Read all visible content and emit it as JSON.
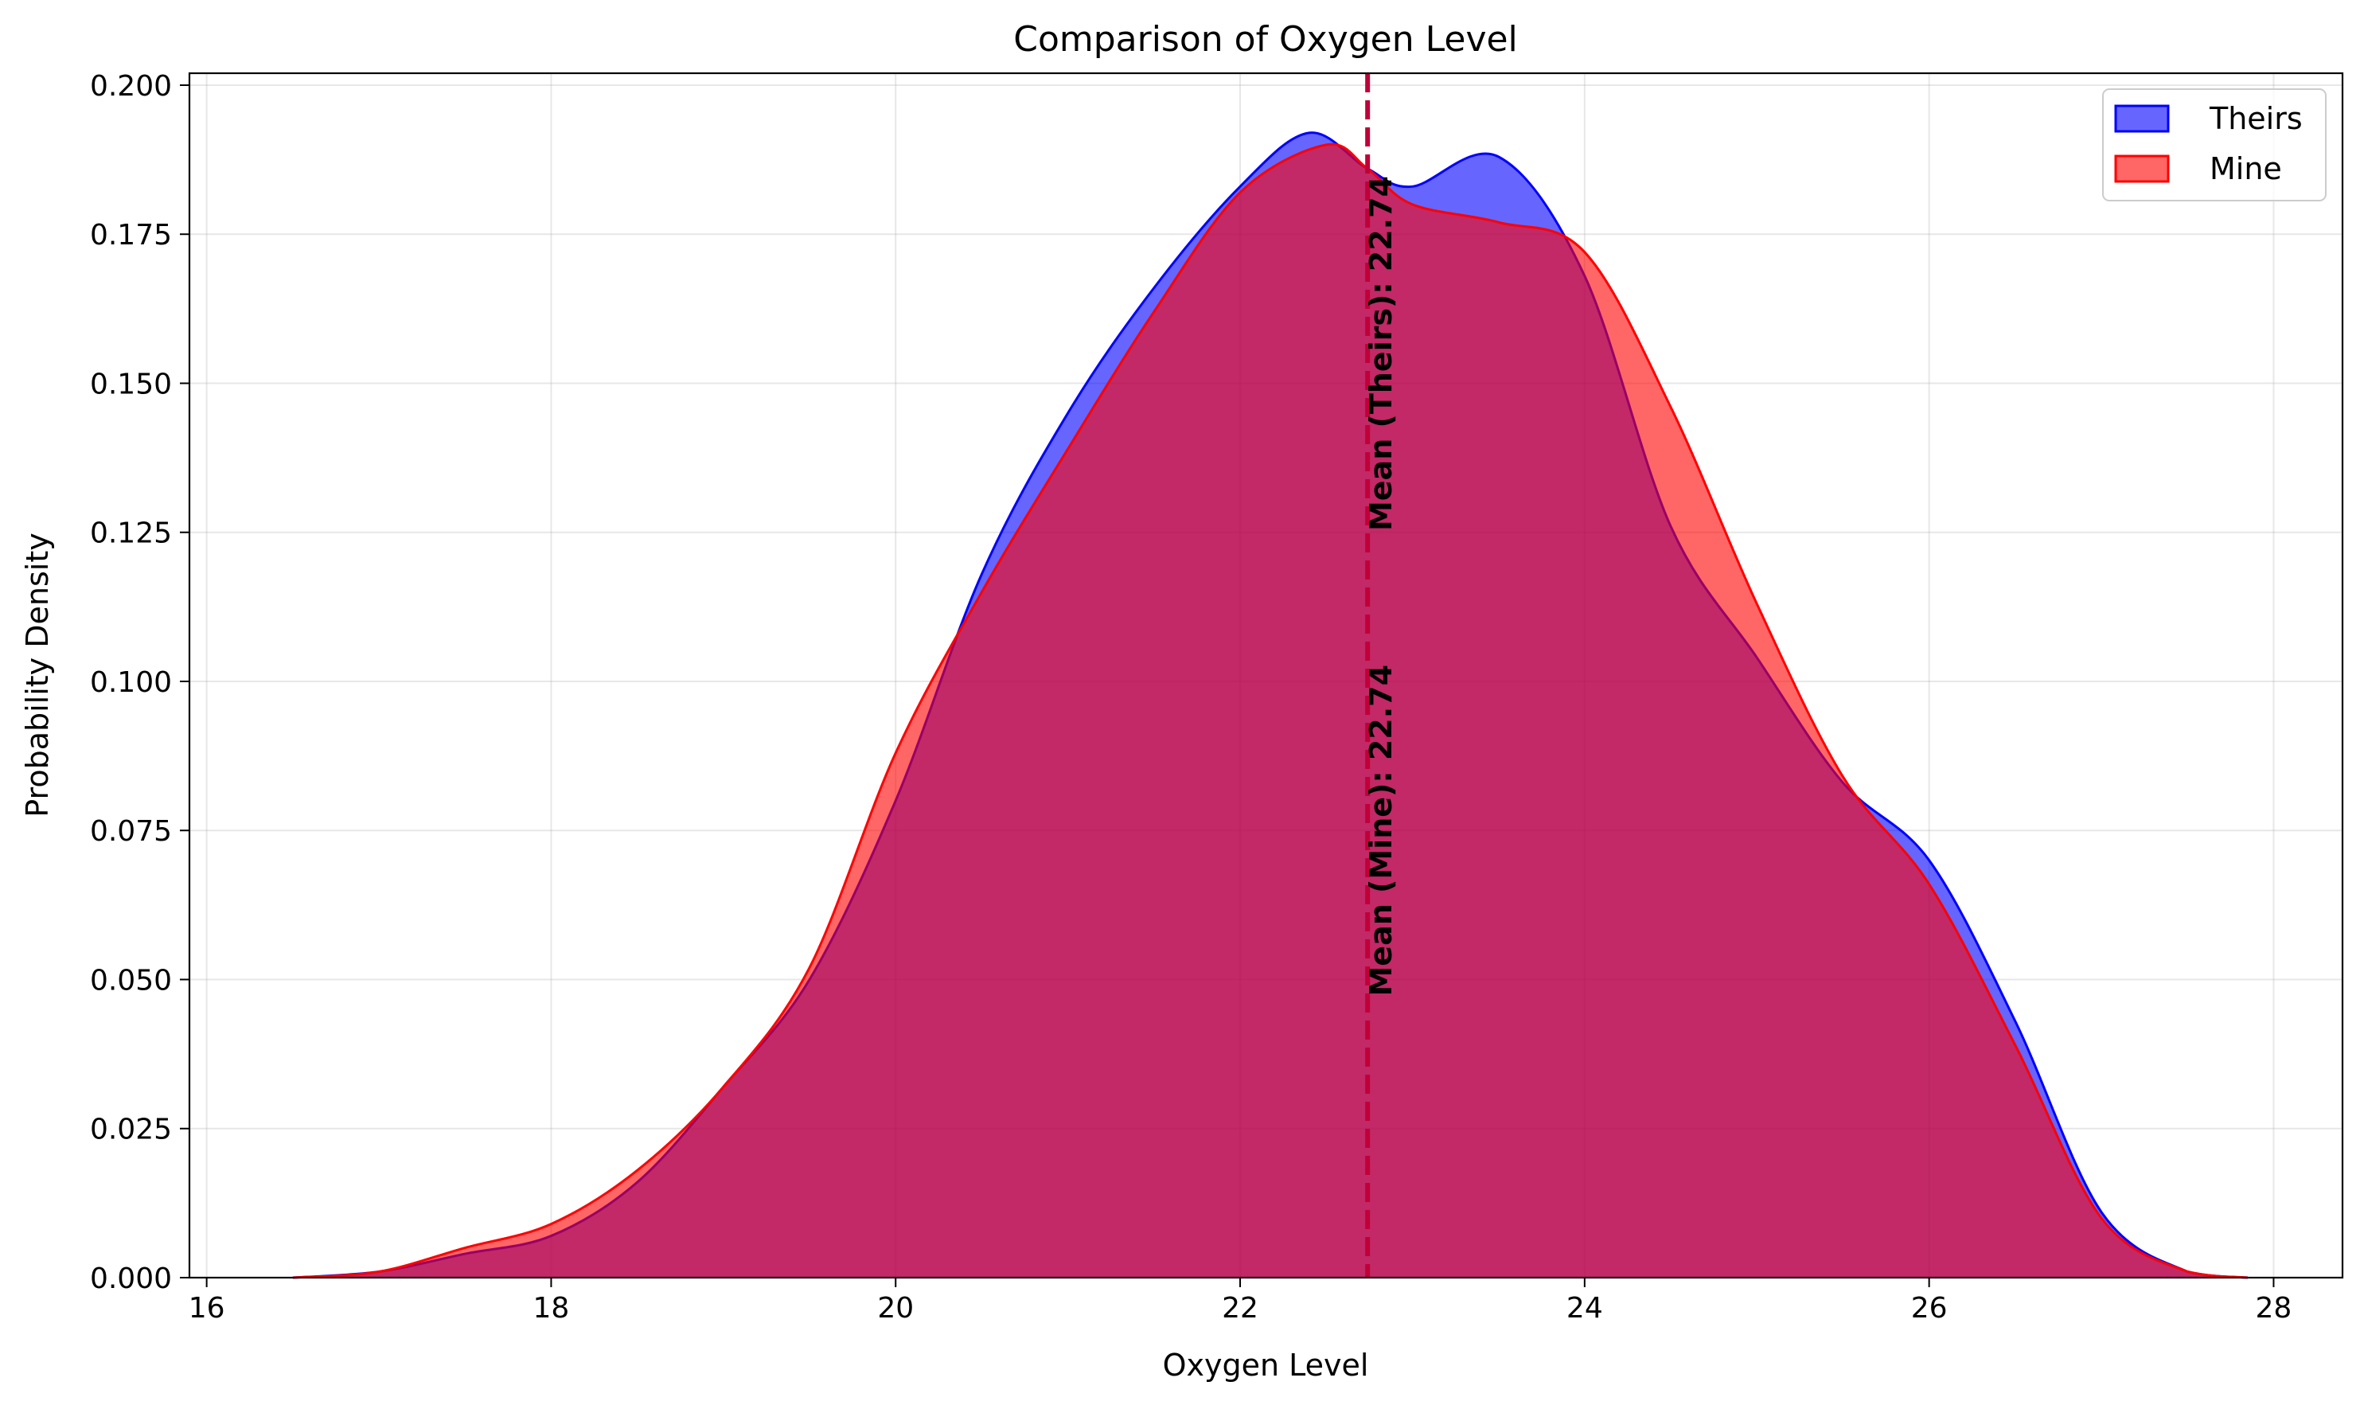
{
  "chart_data": {
    "type": "area",
    "title": "Comparison of Oxygen Level",
    "xlabel": "Oxygen Level",
    "ylabel": "Probability Density",
    "xlim": [
      15.9,
      28.4
    ],
    "ylim": [
      0,
      0.202
    ],
    "xticks": [
      16,
      18,
      20,
      22,
      24,
      26,
      28
    ],
    "yticks": [
      0.0,
      0.025,
      0.05,
      0.075,
      0.1,
      0.125,
      0.15,
      0.175,
      0.2
    ],
    "xtick_labels": [
      "16",
      "18",
      "20",
      "22",
      "24",
      "26",
      "28"
    ],
    "ytick_labels": [
      "0.000",
      "0.025",
      "0.050",
      "0.075",
      "0.100",
      "0.125",
      "0.150",
      "0.175",
      "0.200"
    ],
    "grid": true,
    "legend_position": "top-right",
    "series": [
      {
        "name": "Theirs",
        "color": "#0000ff",
        "fill_alpha": 0.6,
        "x": [
          16.5,
          17.0,
          17.5,
          18.0,
          18.5,
          19.0,
          19.5,
          20.0,
          20.5,
          21.0,
          21.5,
          22.0,
          22.4,
          22.74,
          23.0,
          23.5,
          24.0,
          24.5,
          25.0,
          25.5,
          26.0,
          26.5,
          27.0,
          27.5,
          27.85
        ],
        "y": [
          0.0,
          0.001,
          0.004,
          0.007,
          0.016,
          0.032,
          0.05,
          0.08,
          0.118,
          0.145,
          0.166,
          0.183,
          0.192,
          0.186,
          0.183,
          0.188,
          0.168,
          0.126,
          0.104,
          0.083,
          0.07,
          0.043,
          0.011,
          0.001,
          0.0
        ]
      },
      {
        "name": "Mine",
        "color": "#ff0000",
        "fill_alpha": 0.6,
        "x": [
          16.5,
          17.0,
          17.5,
          18.0,
          18.5,
          19.0,
          19.5,
          20.0,
          20.5,
          21.0,
          21.5,
          22.0,
          22.5,
          22.74,
          23.0,
          23.5,
          24.0,
          24.5,
          25.0,
          25.5,
          26.0,
          26.5,
          27.0,
          27.5,
          27.85
        ],
        "y": [
          0.0,
          0.001,
          0.005,
          0.009,
          0.018,
          0.032,
          0.052,
          0.088,
          0.115,
          0.139,
          0.162,
          0.182,
          0.19,
          0.186,
          0.18,
          0.177,
          0.172,
          0.146,
          0.113,
          0.084,
          0.066,
          0.039,
          0.01,
          0.001,
          0.0
        ]
      }
    ],
    "mean_line": {
      "x": 22.74,
      "color": "#c0003a",
      "style": "dashed"
    },
    "annotations": [
      {
        "text": "Mean (Theirs): 22.74",
        "x": 22.74,
        "y": 0.155
      },
      {
        "text": "Mean (Mine): 22.74",
        "x": 22.74,
        "y": 0.075
      }
    ]
  }
}
